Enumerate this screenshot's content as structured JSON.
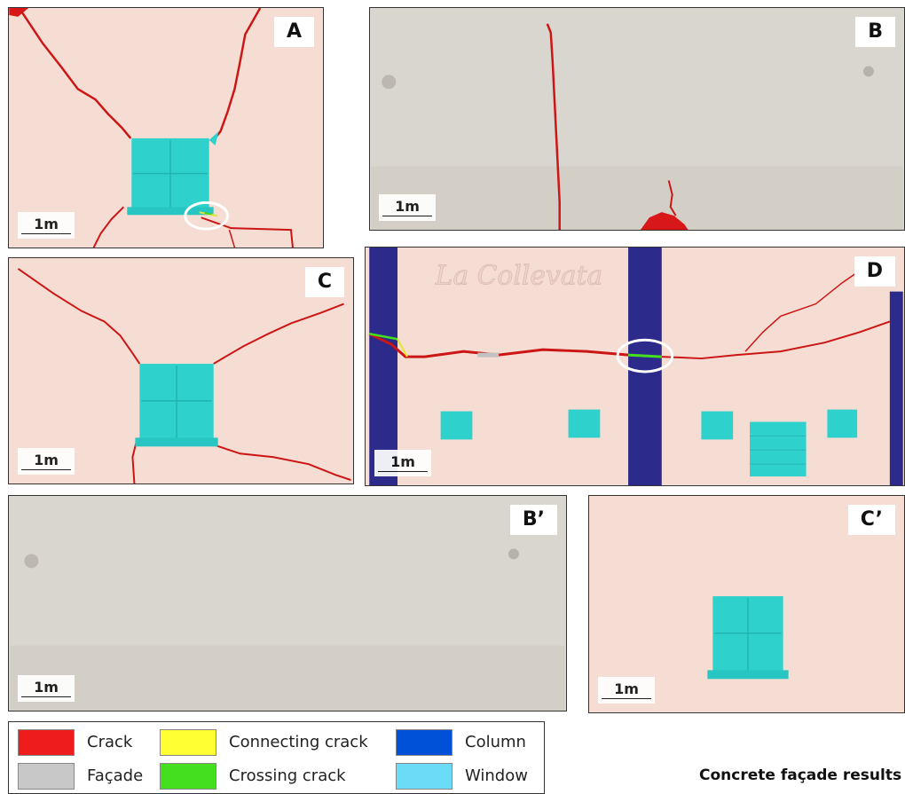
{
  "panels": [
    {
      "id": "A",
      "label": "A",
      "scale": "1m"
    },
    {
      "id": "B",
      "label": "B",
      "scale": "1m"
    },
    {
      "id": "C",
      "label": "C",
      "scale": "1m"
    },
    {
      "id": "D",
      "label": "D",
      "scale": "1m",
      "sign": "La Collevata"
    },
    {
      "id": "B-prime",
      "label": "B’",
      "scale": "1m"
    },
    {
      "id": "C-prime",
      "label": "C’",
      "scale": "1m"
    }
  ],
  "legend": [
    {
      "label": "Crack",
      "color": "#ee1c1c"
    },
    {
      "label": "Façade",
      "color": "#c8c8c8"
    },
    {
      "label": "Connecting crack",
      "color": "#ffff33"
    },
    {
      "label": "Crossing crack",
      "color": "#44e020"
    },
    {
      "label": "Column",
      "color": "#0050d8"
    },
    {
      "label": "Window",
      "color": "#6adcf8"
    }
  ],
  "caption": "Concrete façade results"
}
